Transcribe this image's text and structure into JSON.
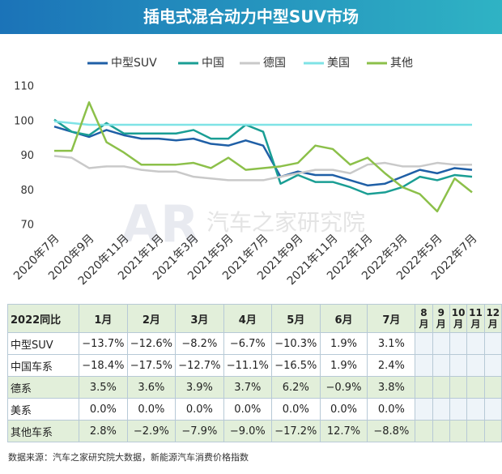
{
  "chart_data": {
    "type": "line",
    "title": "插电式混合动力中型SUV市场",
    "watermark": "汽车之家研究院",
    "watermark_logo": "AR",
    "categories": [
      "2020年7月",
      null,
      "2020年9月",
      null,
      "2020年11月",
      null,
      "2021年1月",
      null,
      "2021年3月",
      null,
      "2021年5月",
      null,
      "2021年7月",
      null,
      "2021年9月",
      null,
      "2021年11月",
      null,
      "2022年1月",
      null,
      "2022年3月",
      null,
      "2022年5月",
      null,
      "2022年7月"
    ],
    "series": [
      {
        "name": "中型SUV",
        "color": "#1f5fa6",
        "values": [
          98.5,
          97,
          95.5,
          97.5,
          96,
          95,
          95,
          94.5,
          95,
          93.5,
          93,
          94.5,
          93,
          84,
          85.5,
          84.5,
          84.5,
          83,
          81.5,
          82,
          84,
          86,
          85,
          86.5,
          86
        ]
      },
      {
        "name": "中国",
        "color": "#1a9e94",
        "values": [
          100.5,
          97,
          96,
          99.5,
          96.5,
          96.5,
          96.5,
          96.5,
          97.5,
          95,
          95,
          99,
          97,
          82,
          84.5,
          82.5,
          82.5,
          81,
          79,
          79.5,
          81,
          84,
          83,
          84.5,
          84
        ]
      },
      {
        "name": "德国",
        "color": "#c9c9c9",
        "values": [
          90,
          89.5,
          86.5,
          87,
          87,
          86,
          85.5,
          85.5,
          84,
          83.5,
          83,
          83,
          83,
          84,
          85,
          86,
          86,
          85,
          87.5,
          88,
          87,
          87,
          88,
          87.5,
          87.5
        ]
      },
      {
        "name": "美国",
        "color": "#7fe3e6",
        "values": [
          100,
          99.5,
          99,
          99,
          99,
          99,
          99,
          99,
          99,
          99,
          99,
          99,
          99,
          99,
          99,
          99,
          99,
          99,
          99,
          99,
          99,
          99,
          99,
          99,
          99
        ]
      },
      {
        "name": "其他",
        "color": "#8cc04a",
        "values": [
          91.5,
          91.5,
          105.5,
          94,
          91,
          87.5,
          87.5,
          87.5,
          88,
          86.5,
          89.5,
          86,
          86.5,
          87,
          88,
          93,
          92,
          87.5,
          89.5,
          85,
          81,
          79,
          74,
          83.5,
          79.5
        ]
      }
    ],
    "ylim": [
      70,
      110
    ],
    "yticks": [
      70,
      80,
      90,
      100,
      110
    ],
    "grid": false,
    "legend": "top"
  },
  "table": {
    "header": [
      "2022同比",
      "1月",
      "2月",
      "3月",
      "4月",
      "5月",
      "6月",
      "7月",
      "8月",
      "9月",
      "10月",
      "11月",
      "12月"
    ],
    "rows": [
      [
        "中型SUV",
        "−13.7%",
        "−12.6%",
        "−8.2%",
        "−6.7%",
        "−10.3%",
        "1.9%",
        "3.1%"
      ],
      [
        "中国车系",
        "−18.4%",
        "−17.5%",
        "−12.7%",
        "−11.1%",
        "−16.5%",
        "1.9%",
        "2.4%"
      ],
      [
        "德系",
        "3.5%",
        "3.6%",
        "3.9%",
        "3.7%",
        "6.2%",
        "−0.9%",
        "3.8%"
      ],
      [
        "美系",
        "0.0%",
        "0.0%",
        "0.0%",
        "0.0%",
        "0.0%",
        "0.0%",
        "0.0%"
      ],
      [
        "其他车系",
        "2.8%",
        "−2.9%",
        "−7.9%",
        "−9.0%",
        "−17.2%",
        "12.7%",
        "−8.8%"
      ]
    ]
  },
  "footer": "数据来源：汽车之家研究院大数据，新能源汽车消费价格指数"
}
